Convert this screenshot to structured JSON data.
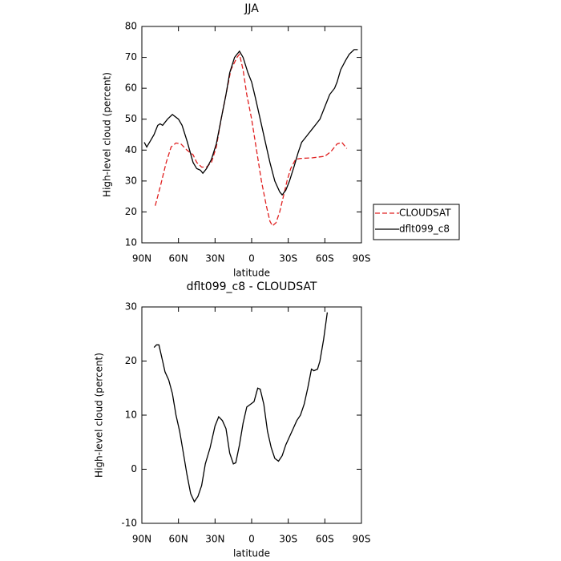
{
  "chart_data": [
    {
      "type": "line",
      "title": "JJA",
      "x_label": "latitude",
      "y_label": "High-level cloud (percent)",
      "xlim": [
        90,
        -90
      ],
      "xticks": [
        {
          "value": 90,
          "label": "90N"
        },
        {
          "value": 60,
          "label": "60N"
        },
        {
          "value": 30,
          "label": "30N"
        },
        0,
        {
          "value": -30,
          "label": "30S"
        },
        {
          "value": -60,
          "label": "60S"
        },
        {
          "value": -90,
          "label": "90S"
        }
      ],
      "ylim": [
        10,
        80
      ],
      "yticks": [
        10,
        20,
        30,
        40,
        50,
        60,
        70,
        80
      ],
      "legend": "right",
      "series": [
        {
          "name": "CLOUDSAT",
          "color": "#e02020",
          "dashed": true,
          "x": [
            79,
            75,
            70,
            66,
            62,
            58,
            53,
            48,
            45,
            41,
            37,
            33,
            29,
            25,
            21,
            17,
            12,
            10,
            7,
            4,
            0,
            -4,
            -8,
            -12,
            -15,
            -17,
            -20,
            -23,
            -26,
            -29,
            -32,
            -36,
            -40,
            -50,
            -60,
            -65,
            -70,
            -74,
            -78
          ],
          "values": [
            22,
            28,
            36,
            41,
            42.3,
            42,
            40,
            38.5,
            36,
            34.5,
            34.5,
            36,
            41,
            50,
            58,
            66,
            70,
            71,
            66,
            58,
            50,
            40,
            30,
            22,
            17,
            15.5,
            16.5,
            20,
            25,
            30,
            34,
            37,
            37.3,
            37.5,
            38,
            39.5,
            42,
            42.5,
            40.5
          ]
        },
        {
          "name": "dflt099_c8",
          "color": "#000000",
          "dashed": false,
          "x": [
            88,
            86,
            83,
            80,
            77,
            75,
            73,
            69,
            65,
            60,
            57,
            53,
            48,
            45,
            42,
            40,
            37,
            33,
            29,
            25,
            21,
            18,
            14,
            10,
            7,
            3,
            0,
            -3,
            -7,
            -11,
            -15,
            -19,
            -23,
            -25,
            -28,
            -31,
            -35,
            -38,
            -41,
            -44,
            -47,
            -50,
            -53,
            -56,
            -60,
            -64,
            -68,
            -70,
            -73,
            -77,
            -80,
            -84,
            -87
          ],
          "values": [
            42.5,
            41,
            43,
            45,
            48,
            48.5,
            48,
            50,
            51.5,
            50,
            48,
            43,
            36,
            34,
            33.5,
            32.5,
            34,
            37,
            42,
            50,
            58,
            65,
            70,
            72,
            70,
            65,
            62,
            57,
            50,
            43,
            36,
            30,
            26.5,
            25.5,
            27,
            30,
            35,
            39,
            42.5,
            44,
            45.5,
            47,
            48.5,
            50,
            54,
            58,
            60,
            62,
            66,
            69,
            71,
            72.5,
            72.5
          ]
        }
      ]
    },
    {
      "type": "line",
      "title": "dflt099_c8 - CLOUDSAT",
      "x_label": "latitude",
      "y_label": "High-level cloud (percent)",
      "xlim": [
        90,
        -90
      ],
      "xticks": [
        {
          "value": 90,
          "label": "90N"
        },
        {
          "value": 60,
          "label": "60N"
        },
        {
          "value": 30,
          "label": "30N"
        },
        0,
        {
          "value": -30,
          "label": "30S"
        },
        {
          "value": -60,
          "label": "60S"
        },
        {
          "value": -90,
          "label": "90S"
        }
      ],
      "ylim": [
        -10,
        30
      ],
      "yticks": [
        -10,
        0,
        10,
        20,
        30
      ],
      "series": [
        {
          "color": "#000000",
          "dashed": false,
          "x": [
            80,
            78,
            76,
            73,
            71,
            68,
            65,
            62,
            59,
            56,
            53,
            50,
            47,
            44,
            41,
            38,
            34,
            30,
            27,
            24,
            21,
            18,
            15,
            13,
            10,
            7,
            4,
            1,
            -2,
            -5,
            -7,
            -10,
            -13,
            -16,
            -19,
            -22,
            -25,
            -28,
            -31,
            -34,
            -37,
            -40,
            -43,
            -46,
            -49,
            -51,
            -54,
            -56,
            -59,
            -62
          ],
          "values": [
            22.5,
            23,
            23,
            20,
            18,
            16.5,
            14,
            10,
            7,
            3,
            -1,
            -4.5,
            -6,
            -5,
            -3,
            1,
            4,
            8,
            9.7,
            9,
            7.5,
            3,
            1,
            1.2,
            4.5,
            8.5,
            11.5,
            12,
            12.5,
            15,
            14.8,
            12,
            7,
            4,
            2,
            1.5,
            2.5,
            4.5,
            6,
            7.5,
            9,
            10,
            12,
            15,
            18.5,
            18.2,
            18.5,
            20,
            24,
            29
          ]
        }
      ]
    }
  ]
}
